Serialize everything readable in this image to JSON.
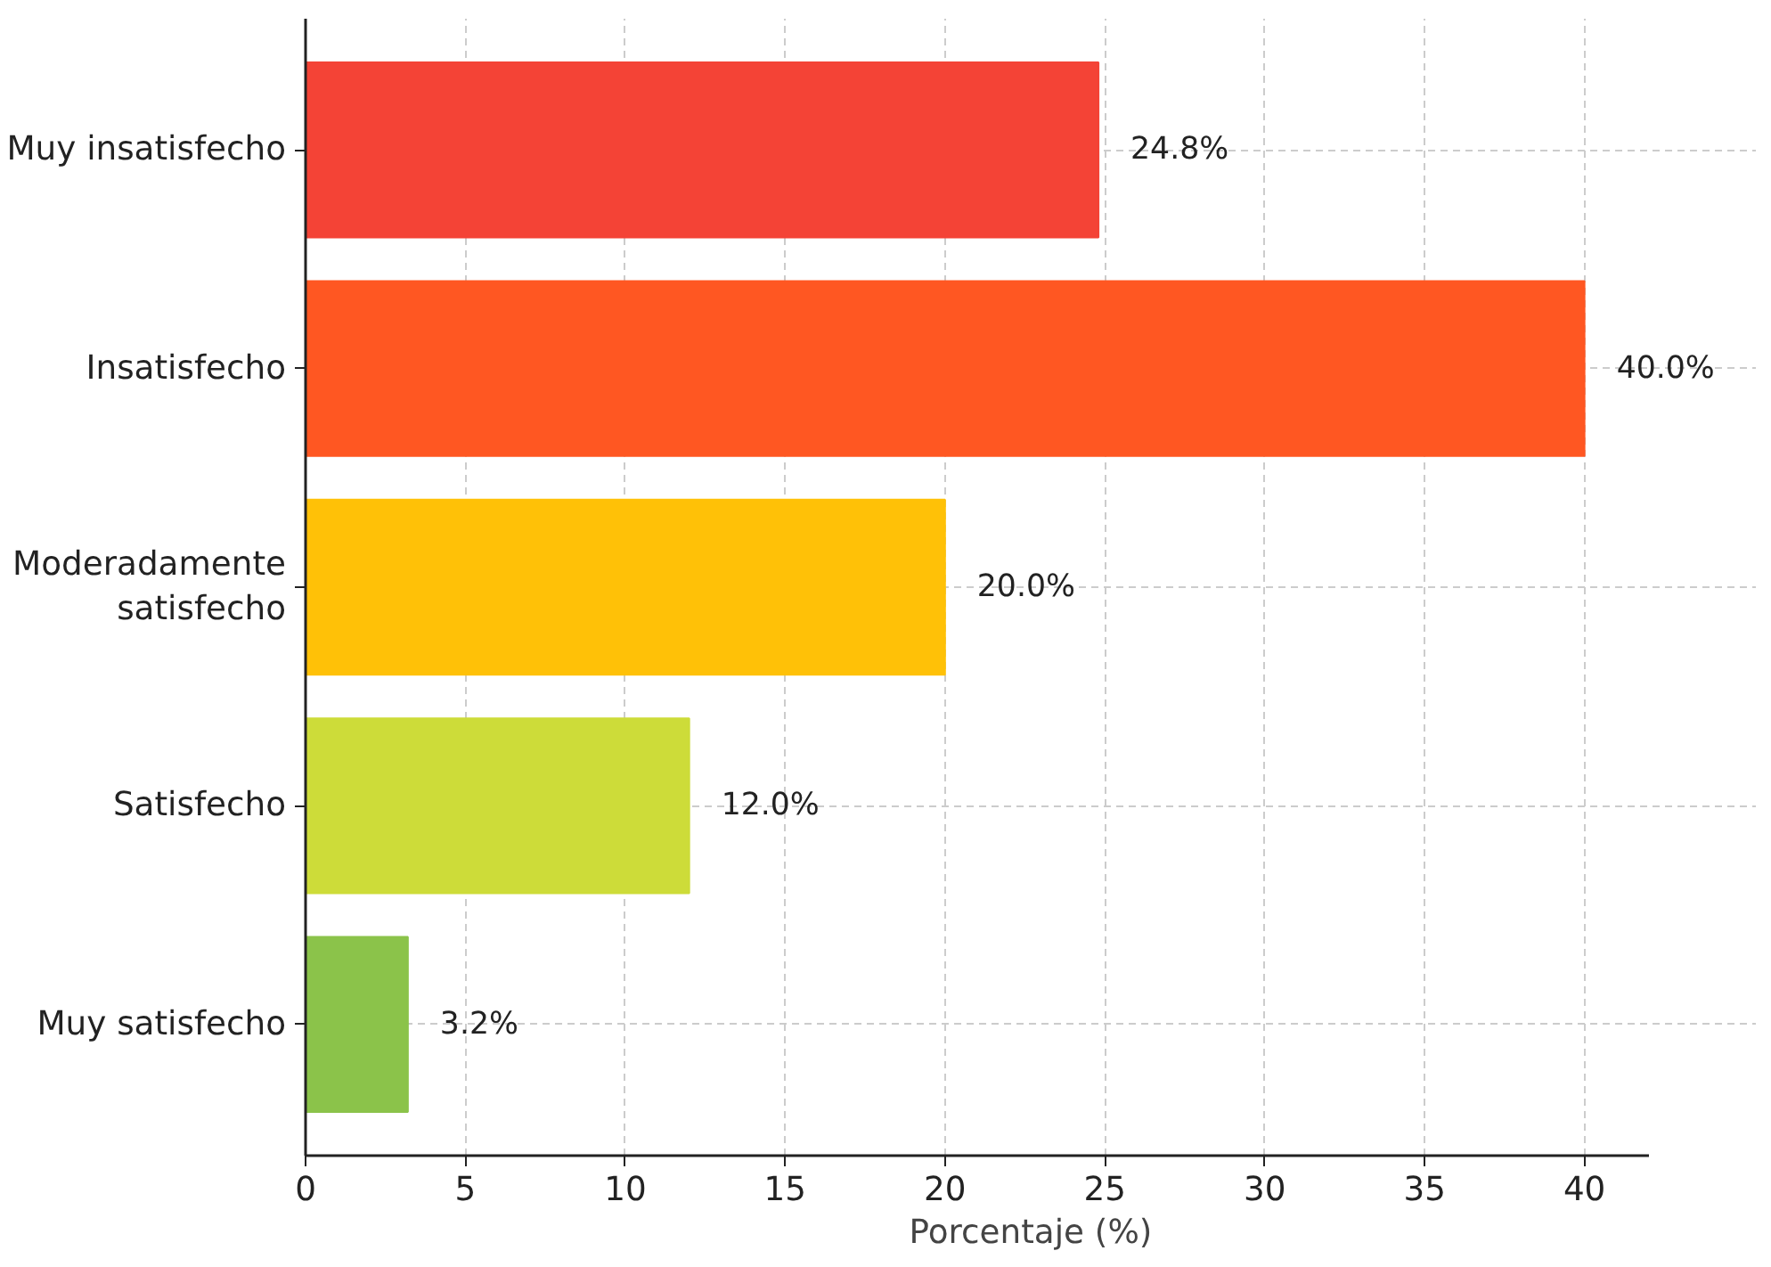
{
  "chart_data": {
    "type": "bar",
    "orientation": "horizontal",
    "xlabel": "Porcentaje (%)",
    "categories": [
      "Muy insatisfecho",
      "Insatisfecho",
      "Moderadamente\nsatisfecho",
      "Satisfecho",
      "Muy satisfecho"
    ],
    "values": [
      24.8,
      40.0,
      20.0,
      12.0,
      3.2
    ],
    "colors": [
      "#f44336",
      "#ff5722",
      "#ffc107",
      "#cddc39",
      "#8bc34a"
    ],
    "value_labels": [
      "24.8%",
      "40.0%",
      "20.0%",
      "12.0%",
      "3.2%"
    ],
    "xlim": [
      0,
      42
    ],
    "xticks": [
      0,
      5,
      10,
      15,
      20,
      25,
      30,
      35,
      40
    ],
    "grid": true
  }
}
